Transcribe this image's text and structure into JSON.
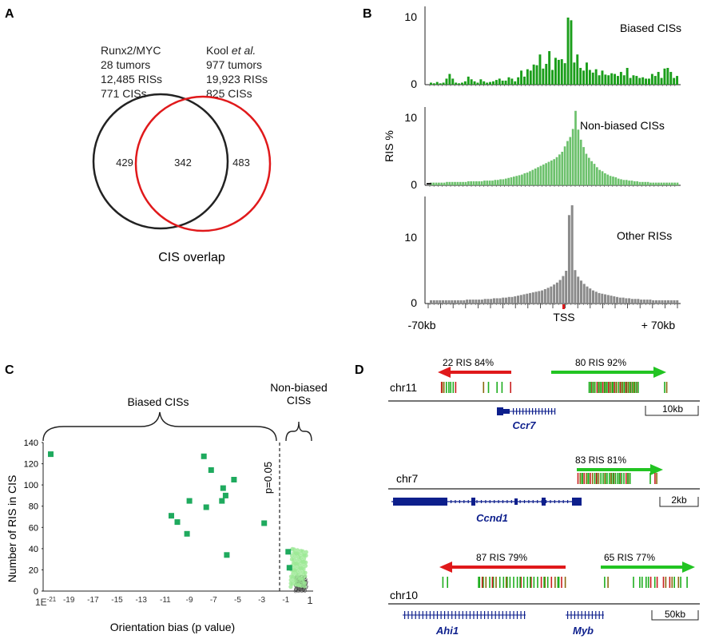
{
  "panel_a": {
    "label": "A",
    "left_lines": [
      "Runx2/MYC",
      "28 tumors",
      "12,485 RISs",
      "771 CISs"
    ],
    "right_title_prefix": "Kool ",
    "right_title_italic": "et al.",
    "right_lines": [
      "977 tumors",
      "19,923 RISs",
      "825 CISs"
    ],
    "venn": {
      "left_only": "429",
      "overlap": "342",
      "right_only": "483"
    },
    "caption": "CIS overlap",
    "colors": {
      "left": "#222222",
      "right": "#e0191b"
    }
  },
  "panel_b": {
    "label": "B",
    "ylabel": "RIS %",
    "xticks": {
      "left": "-70kb",
      "center": "TSS",
      "right": "+ 70kb"
    },
    "subplots": [
      {
        "title": "Biased CISs",
        "ytick_top": "10",
        "ytick_zero": "0",
        "color": "#1a9e1a"
      },
      {
        "title": "Non-biased CISs",
        "ytick_top": "10",
        "ytick_zero": "0",
        "color": "#6cc16c"
      },
      {
        "title": "Other RISs",
        "ytick_top": "10",
        "ytick_zero": "0",
        "color": "#8a8a8a"
      }
    ]
  },
  "panel_c": {
    "label": "C",
    "biased_label": "Biased CISs",
    "nonbiased_label_1": "Non-biased",
    "nonbiased_label_2": "CISs",
    "threshold_label": "p=0.05",
    "ylabel": "Number of RIS in CIS",
    "xlabel": "Orientation bias (p value)",
    "yticks": [
      "0",
      "20",
      "40",
      "60",
      "80",
      "100",
      "120",
      "140"
    ],
    "xticks_first_main": "1E",
    "xticks_first_sup": "-21",
    "xticks": [
      "-19",
      "-17",
      "-15",
      "-13",
      "-11",
      "-9",
      "-7",
      "-5",
      "-3",
      "-1",
      "1"
    ],
    "colors": {
      "biased": "#1faa5e",
      "nonbiased": "#8fe08a",
      "other": "#333333"
    }
  },
  "panel_d": {
    "label": "D",
    "loci": [
      {
        "chrom": "chr11",
        "scale": "10kb",
        "genes": [
          "Ccr7"
        ],
        "arrows": [
          {
            "text": "22 RIS 84%",
            "dir": "left",
            "color": "#e0191b"
          },
          {
            "text": "80 RIS 92%",
            "dir": "right",
            "color": "#22c422"
          }
        ]
      },
      {
        "chrom": "chr7",
        "scale": "2kb",
        "genes": [
          "Ccnd1"
        ],
        "arrows": [
          {
            "text": "83 RIS 81%",
            "dir": "right",
            "color": "#22c422"
          }
        ]
      },
      {
        "chrom": "chr10",
        "scale": "50kb",
        "genes": [
          "Ahi1",
          "Myb"
        ],
        "arrows": [
          {
            "text": "87 RIS 79%",
            "dir": "left",
            "color": "#e0191b"
          },
          {
            "text": "65 RIS 77%",
            "dir": "right",
            "color": "#22c422"
          }
        ]
      }
    ],
    "gene_color": "#0d1f8c"
  },
  "chart_data": [
    {
      "type": "bar",
      "title": "Biased CISs",
      "ylabel": "RIS %",
      "ylim": [
        0,
        11
      ],
      "values": [
        0.3,
        0.2,
        0.4,
        0.2,
        0.3,
        0.9,
        1.6,
        0.9,
        0.3,
        0.2,
        0.3,
        0.5,
        1.2,
        0.8,
        0.5,
        0.3,
        0.8,
        0.5,
        0.3,
        0.4,
        0.5,
        0.7,
        0.9,
        0.6,
        0.6,
        1.1,
        0.9,
        0.5,
        1.1,
        2.1,
        1.2,
        2.3,
        2.1,
        3.0,
        2.9,
        4.5,
        2.4,
        3.1,
        5.0,
        2.2,
        4.0,
        3.7,
        3.8,
        3.2,
        10.0,
        9.6,
        3.3,
        4.5,
        2.5,
        2.1,
        3.3,
        2.2,
        1.8,
        2.3,
        1.4,
        2.1,
        1.5,
        1.4,
        1.7,
        1.6,
        1.3,
        1.9,
        1.4,
        2.5,
        1.0,
        1.4,
        1.3,
        1.0,
        1.1,
        0.9,
        0.9,
        1.6,
        1.3,
        1.9,
        1.0,
        2.4,
        2.5,
        1.9,
        1.0,
        1.3
      ],
      "baseline": 0.2
    },
    {
      "type": "bar",
      "title": "Non-biased CISs",
      "ylabel": "RIS %",
      "ylim": [
        0,
        11
      ],
      "values": [
        0.4,
        0.4,
        0.4,
        0.4,
        0.4,
        0.4,
        0.5,
        0.5,
        0.5,
        0.5,
        0.5,
        0.5,
        0.5,
        0.5,
        0.6,
        0.6,
        0.6,
        0.6,
        0.6,
        0.6,
        0.7,
        0.7,
        0.7,
        0.7,
        0.8,
        0.8,
        0.9,
        0.9,
        1.0,
        1.1,
        1.2,
        1.3,
        1.4,
        1.5,
        1.6,
        1.8,
        1.9,
        2.1,
        2.3,
        2.5,
        2.7,
        2.9,
        3.1,
        3.3,
        3.5,
        3.7,
        3.9,
        4.2,
        4.6,
        5.0,
        5.8,
        6.6,
        7.2,
        8.4,
        11.1,
        8.3,
        6.8,
        5.7,
        4.7,
        4.1,
        3.6,
        3.2,
        2.7,
        2.3,
        2.1,
        1.8,
        1.6,
        1.4,
        1.3,
        1.2,
        1.0,
        0.9,
        0.8,
        0.8,
        0.7,
        0.7,
        0.6,
        0.6,
        0.5,
        0.5,
        0.5,
        0.5,
        0.4,
        0.4,
        0.4,
        0.4,
        0.4,
        0.4,
        0.4,
        0.4,
        0.4,
        0.4,
        0.4
      ],
      "baseline": 0.4
    },
    {
      "type": "bar",
      "title": "Other RISs",
      "ylabel": "RIS %",
      "ylim": [
        0,
        16
      ],
      "values": [
        0.5,
        0.5,
        0.5,
        0.5,
        0.5,
        0.5,
        0.5,
        0.5,
        0.5,
        0.5,
        0.5,
        0.5,
        0.6,
        0.6,
        0.6,
        0.6,
        0.6,
        0.6,
        0.7,
        0.7,
        0.7,
        0.8,
        0.8,
        0.8,
        0.9,
        0.9,
        1.0,
        1.0,
        1.1,
        1.2,
        1.3,
        1.4,
        1.5,
        1.6,
        1.7,
        1.8,
        1.9,
        2.0,
        2.2,
        2.4,
        2.6,
        2.9,
        3.2,
        3.6,
        4.2,
        5.0,
        13.5,
        15.0,
        5.1,
        4.1,
        3.5,
        3.0,
        2.6,
        2.3,
        2.0,
        1.8,
        1.6,
        1.5,
        1.4,
        1.3,
        1.2,
        1.1,
        1.0,
        0.9,
        0.9,
        0.8,
        0.8,
        0.7,
        0.7,
        0.7,
        0.6,
        0.6,
        0.6,
        0.6,
        0.5,
        0.5,
        0.5,
        0.5,
        0.5,
        0.5,
        0.5,
        0.5,
        0.5
      ],
      "baseline": 0.5
    },
    {
      "type": "scatter",
      "xlabel": "Orientation bias (p value)",
      "ylabel": "Number of RIS in CIS",
      "xlim": [
        -21,
        1
      ],
      "ylim": [
        0,
        140
      ],
      "series": [
        {
          "points": [
            [
              -20.5,
              129
            ],
            [
              -10.5,
              71
            ],
            [
              -10.0,
              65
            ],
            [
              -9.2,
              54
            ],
            [
              -9.0,
              85
            ],
            [
              -7.8,
              127
            ],
            [
              -7.6,
              79
            ],
            [
              -7.2,
              114
            ],
            [
              -6.3,
              85
            ],
            [
              -6.2,
              97
            ],
            [
              -6.0,
              90
            ],
            [
              -5.9,
              34
            ],
            [
              -5.3,
              105
            ],
            [
              -2.8,
              64
            ],
            [
              -0.8,
              37
            ],
            [
              -0.7,
              22
            ]
          ]
        }
      ]
    }
  ]
}
